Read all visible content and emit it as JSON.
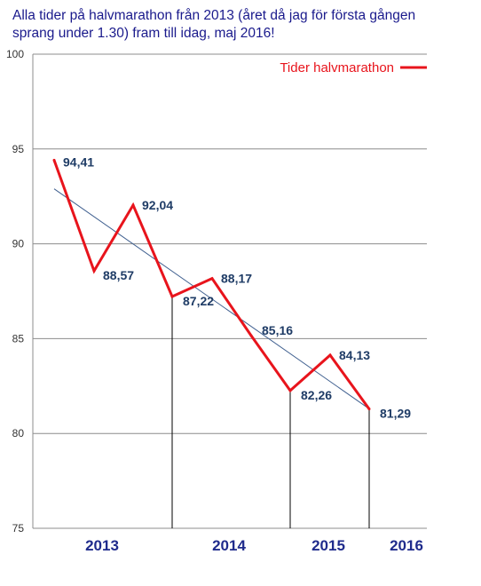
{
  "chart_data": {
    "type": "line",
    "title": "Alla tider på halvmarathon från 2013 (året då jag för första gången sprang under 1.30) fram till idag, maj 2016!",
    "xlabel": "",
    "ylabel": "",
    "ylim": [
      75,
      100
    ],
    "yticks": [
      75,
      80,
      85,
      90,
      95,
      100
    ],
    "grid": true,
    "legend_position": "top-right",
    "year_labels": [
      "2013",
      "2014",
      "2015",
      "2016"
    ],
    "series": [
      {
        "name": "Tider halvmarathon",
        "color": "#e8141c",
        "values": [
          94.41,
          88.57,
          92.04,
          87.22,
          88.17,
          85.16,
          82.26,
          84.13,
          81.29
        ],
        "labels": [
          "94,41",
          "88,57",
          "92,04",
          "87,22",
          "88,17",
          "85,16",
          "82,26",
          "84,13",
          "81,29"
        ]
      }
    ],
    "trendline": {
      "color": "#3f5f8f",
      "start": 92.9,
      "end": 81.3
    }
  }
}
